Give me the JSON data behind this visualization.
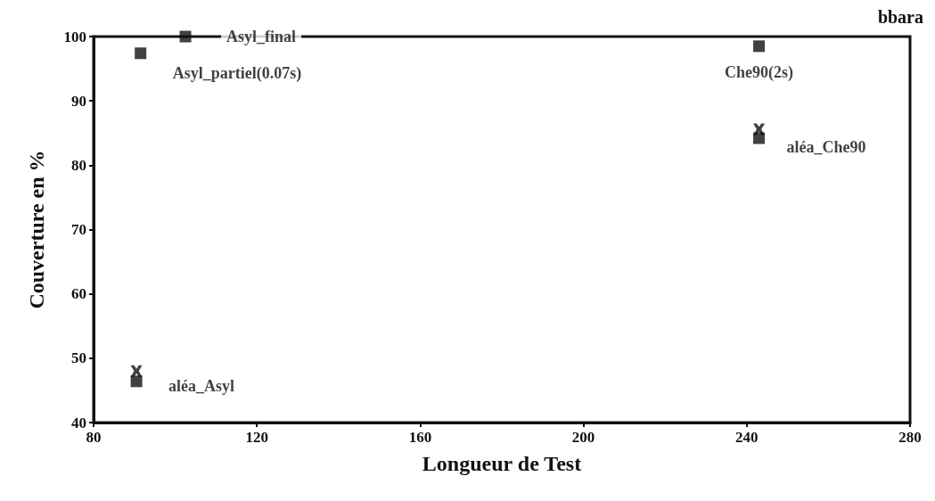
{
  "chart_data": {
    "type": "scatter",
    "title": "bbara",
    "xlabel": "Longueur de Test",
    "ylabel": "Couverture en %",
    "xlim": [
      80,
      280
    ],
    "xticks": [
      80,
      120,
      160,
      200,
      240,
      280
    ],
    "ylim": [
      40,
      100
    ],
    "yticks": [
      40,
      50,
      60,
      70,
      80,
      90,
      100
    ],
    "grid": false,
    "series": [
      {
        "color": "#111111",
        "marker": "square",
        "x": [
          102.5,
          91.5,
          243,
          243,
          90.5
        ],
        "values": [
          100,
          97.4,
          98.5,
          84.2,
          46.4
        ]
      },
      {
        "color": "#111111",
        "marker": "cross",
        "x": [
          243,
          90.5
        ],
        "values": [
          85.6,
          48.0
        ]
      }
    ],
    "annotations": [
      {
        "text": "Asyl_final",
        "x": 102.5,
        "y": 100
      },
      {
        "text": "Asyl_partiel(0.07s)",
        "x": 91.5,
        "y": 97.4
      },
      {
        "text": "Che90(2s)",
        "x": 243,
        "y": 98.5
      },
      {
        "text": "aléa_Che90",
        "x": 243,
        "y": 84.2
      },
      {
        "text": "aléa_Asyl",
        "x": 90.5,
        "y": 46.4
      }
    ]
  }
}
